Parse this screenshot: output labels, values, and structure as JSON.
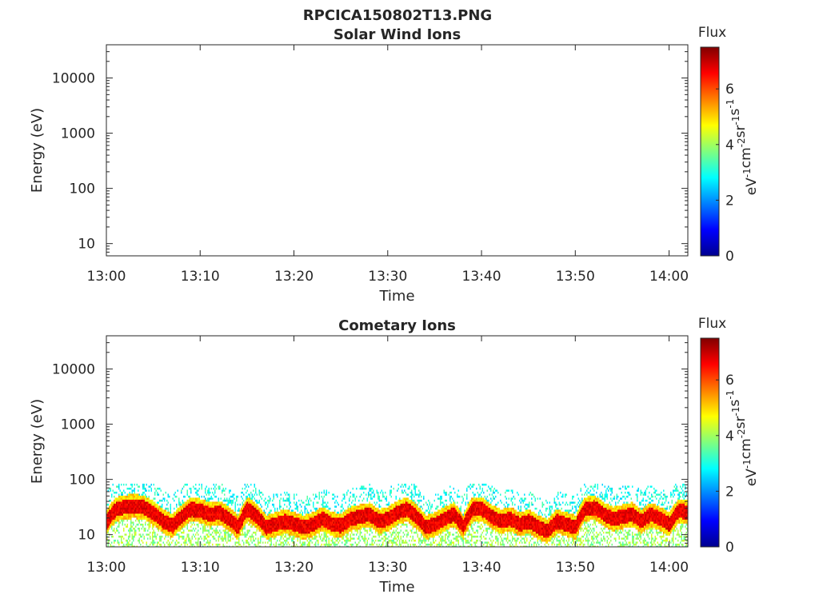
{
  "figure": {
    "title": "RPCICA150802T13.PNG"
  },
  "chart_data": [
    {
      "type": "heatmap",
      "title": "Solar Wind Ions",
      "xlabel": "Time",
      "ylabel": "Energy (eV)",
      "x_ticks": [
        "13:00",
        "13:10",
        "13:20",
        "13:30",
        "13:40",
        "13:50",
        "14:00"
      ],
      "xlim_minutes": [
        0,
        62
      ],
      "y_scale": "log",
      "ylim": [
        6,
        40000
      ],
      "y_ticks": [
        10,
        100,
        1000,
        10000
      ],
      "y_tick_labels": [
        "10",
        "100",
        "1000",
        "10000"
      ],
      "colorbar": {
        "title": "Flux",
        "label": "eV-1cm-2sr-1s-1",
        "ticks": [
          "0",
          "2",
          "4",
          "6"
        ],
        "range": [
          0,
          7.5
        ]
      },
      "data_description": "empty",
      "band": []
    },
    {
      "type": "heatmap",
      "title": "Cometary Ions",
      "xlabel": "Time",
      "ylabel": "Energy (eV)",
      "x_ticks": [
        "13:00",
        "13:10",
        "13:20",
        "13:30",
        "13:40",
        "13:50",
        "14:00"
      ],
      "xlim_minutes": [
        0,
        62
      ],
      "y_scale": "log",
      "ylim": [
        6,
        40000
      ],
      "y_ticks": [
        10,
        100,
        1000,
        10000
      ],
      "y_tick_labels": [
        "10",
        "100",
        "1000",
        "10000"
      ],
      "colorbar": {
        "title": "Flux",
        "label": "eV-1cm-2sr-1s-1",
        "ticks": [
          "0",
          "2",
          "4",
          "6"
        ],
        "range": [
          0,
          7.5
        ]
      },
      "band": [
        {
          "t": 0,
          "e": 18
        },
        {
          "t": 1,
          "e": 30
        },
        {
          "t": 2,
          "e": 33
        },
        {
          "t": 3,
          "e": 34
        },
        {
          "t": 4,
          "e": 32
        },
        {
          "t": 5,
          "e": 25
        },
        {
          "t": 6,
          "e": 18
        },
        {
          "t": 7,
          "e": 15
        },
        {
          "t": 8,
          "e": 22
        },
        {
          "t": 9,
          "e": 30
        },
        {
          "t": 10,
          "e": 28
        },
        {
          "t": 11,
          "e": 24
        },
        {
          "t": 12,
          "e": 26
        },
        {
          "t": 13,
          "e": 20
        },
        {
          "t": 14,
          "e": 14
        },
        {
          "t": 15,
          "e": 30
        },
        {
          "t": 16,
          "e": 22
        },
        {
          "t": 17,
          "e": 14
        },
        {
          "t": 18,
          "e": 16
        },
        {
          "t": 19,
          "e": 18
        },
        {
          "t": 20,
          "e": 16
        },
        {
          "t": 21,
          "e": 14
        },
        {
          "t": 22,
          "e": 16
        },
        {
          "t": 23,
          "e": 20
        },
        {
          "t": 24,
          "e": 16
        },
        {
          "t": 25,
          "e": 15
        },
        {
          "t": 26,
          "e": 20
        },
        {
          "t": 27,
          "e": 22
        },
        {
          "t": 28,
          "e": 24
        },
        {
          "t": 29,
          "e": 18
        },
        {
          "t": 30,
          "e": 20
        },
        {
          "t": 31,
          "e": 26
        },
        {
          "t": 32,
          "e": 30
        },
        {
          "t": 33,
          "e": 22
        },
        {
          "t": 34,
          "e": 14
        },
        {
          "t": 35,
          "e": 16
        },
        {
          "t": 36,
          "e": 20
        },
        {
          "t": 37,
          "e": 24
        },
        {
          "t": 38,
          "e": 14
        },
        {
          "t": 39,
          "e": 30
        },
        {
          "t": 40,
          "e": 30
        },
        {
          "t": 41,
          "e": 22
        },
        {
          "t": 42,
          "e": 18
        },
        {
          "t": 43,
          "e": 20
        },
        {
          "t": 44,
          "e": 16
        },
        {
          "t": 45,
          "e": 18
        },
        {
          "t": 46,
          "e": 14
        },
        {
          "t": 47,
          "e": 12
        },
        {
          "t": 48,
          "e": 18
        },
        {
          "t": 49,
          "e": 16
        },
        {
          "t": 50,
          "e": 14
        },
        {
          "t": 51,
          "e": 30
        },
        {
          "t": 52,
          "e": 32
        },
        {
          "t": 53,
          "e": 24
        },
        {
          "t": 54,
          "e": 20
        },
        {
          "t": 55,
          "e": 22
        },
        {
          "t": 56,
          "e": 24
        },
        {
          "t": 57,
          "e": 18
        },
        {
          "t": 58,
          "e": 24
        },
        {
          "t": 59,
          "e": 20
        },
        {
          "t": 60,
          "e": 16
        },
        {
          "t": 61,
          "e": 28
        },
        {
          "t": 62,
          "e": 26
        }
      ]
    }
  ]
}
